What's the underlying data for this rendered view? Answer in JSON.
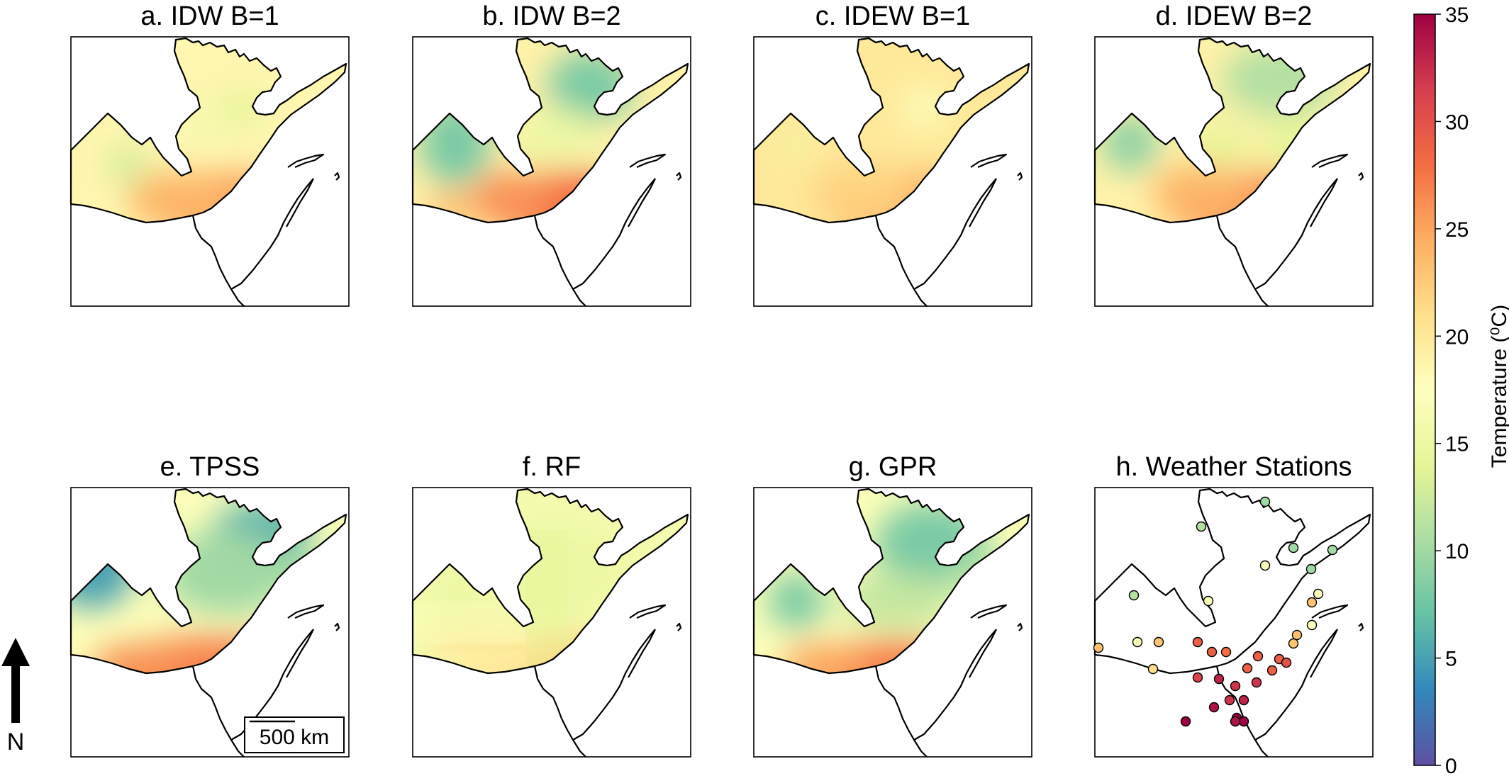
{
  "chart_data": {
    "type": "heatmap",
    "panels": [
      {
        "title": "a. IDW B=1",
        "method": "IDW B=1",
        "range_c": [
          14,
          27
        ],
        "cool_spots": [
          "west",
          "north"
        ],
        "hot_spots": [
          "south"
        ]
      },
      {
        "title": "b. IDW B=2",
        "method": "IDW B=2",
        "range_c": [
          7,
          29
        ],
        "cool_spots": [
          "west",
          "north"
        ],
        "hot_spots": [
          "south"
        ]
      },
      {
        "title": "c. IDEW B=1",
        "method": "IDEW B=1",
        "range_c": [
          15,
          25
        ],
        "cool_spots": [
          "west"
        ],
        "hot_spots": [
          "south"
        ]
      },
      {
        "title": "d. IDEW B=2",
        "method": "IDEW B=2",
        "range_c": [
          8,
          27
        ],
        "cool_spots": [
          "west",
          "north"
        ],
        "hot_spots": [
          "south"
        ]
      },
      {
        "title": "e. TPSS",
        "method": "TPSS",
        "range_c": [
          5,
          28
        ],
        "cool_spots": [
          "west",
          "north"
        ],
        "hot_spots": [
          "south"
        ]
      },
      {
        "title": "f. RF",
        "method": "RF",
        "range_c": [
          14,
          24
        ],
        "cool_spots": [],
        "hot_spots": [
          "south"
        ]
      },
      {
        "title": "g. GPR",
        "method": "GPR",
        "range_c": [
          7,
          29
        ],
        "cool_spots": [
          "west",
          "north"
        ],
        "hot_spots": [
          "south"
        ]
      },
      {
        "title": "h. Weather Stations",
        "method": "Weather Stations",
        "stations_c": [
          10,
          11,
          10,
          10,
          17,
          10,
          17,
          11,
          17,
          23,
          17,
          23,
          23,
          23,
          17,
          23,
          29,
          29,
          28,
          29,
          29,
          29,
          29,
          31,
          32,
          32,
          33,
          32,
          33,
          34,
          35,
          35,
          34,
          35,
          21,
          30
        ]
      }
    ],
    "colorbar": {
      "label": "Temperature (⁰C)",
      "range": [
        0,
        35
      ],
      "ticks": [
        0,
        5,
        10,
        15,
        20,
        25,
        30,
        35
      ],
      "colormap": "Spectral_r"
    },
    "scale_bar": "500 km",
    "north_label": "N"
  }
}
